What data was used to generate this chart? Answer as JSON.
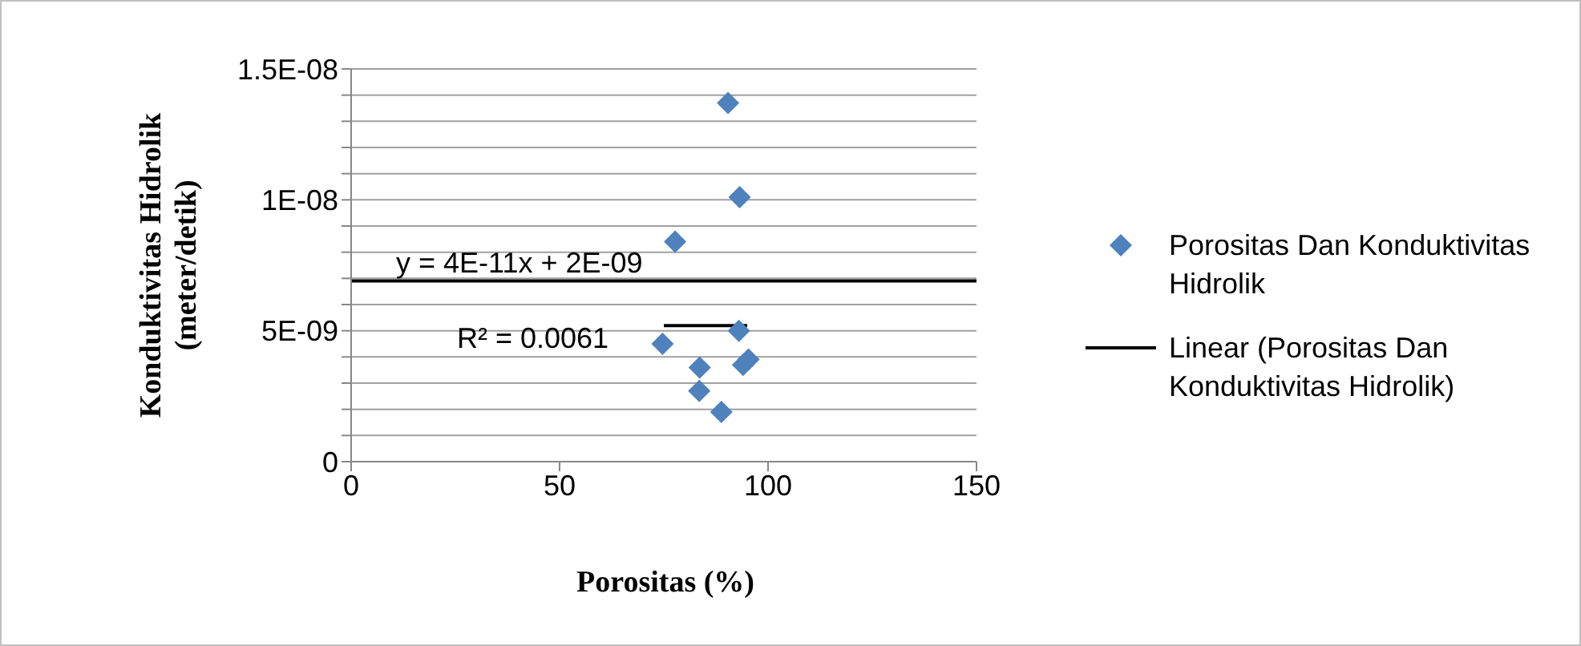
{
  "chart_data": {
    "type": "scatter",
    "xlabel": "Porositas (%)",
    "ylabel": "Konduktivitas Hidrolik (meter/detik)",
    "xlim": [
      0,
      150
    ],
    "xticks": [
      0,
      50,
      100,
      150
    ],
    "ylim": [
      0,
      1.5e-08
    ],
    "yticks": [
      0,
      {
        "value": 1e-09,
        "label": null
      },
      {
        "value": 2e-09,
        "label": null
      },
      {
        "value": 3e-09,
        "label": null
      },
      {
        "value": 4e-09,
        "label": null
      },
      {
        "value": 5e-09,
        "label": "5E-09"
      },
      {
        "value": 6e-09,
        "label": null
      },
      {
        "value": 7e-09,
        "label": null
      },
      {
        "value": 8e-09,
        "label": null
      },
      {
        "value": 9e-09,
        "label": null
      },
      {
        "value": 1e-08,
        "label": "1E-08"
      },
      {
        "value": 1.1e-08,
        "label": null
      },
      {
        "value": 1.2e-08,
        "label": null
      },
      {
        "value": 1.3e-08,
        "label": null
      },
      {
        "value": 1.4e-08,
        "label": null
      },
      {
        "value": 1.5e-08,
        "label": "1.5E-08"
      }
    ],
    "grid": "y",
    "legend": "right",
    "marker": "diamond",
    "series": [
      {
        "name": "Porositas Dan Konduktivitas Hidrolik",
        "color": "#4f81bd",
        "x": [
          90.4,
          93.2,
          77.7,
          93.0,
          74.7,
          95.3,
          94.0,
          83.6,
          83.5,
          88.8
        ],
        "values": [
          1.37e-08,
          1.01e-08,
          8.4e-09,
          5e-09,
          4.5e-09,
          3.9e-09,
          3.7e-09,
          3.6e-09,
          2.7e-09,
          1.9e-09
        ]
      },
      {
        "name": "Linear (Porositas Dan Konduktivitas Hidrolik)",
        "type": "line",
        "color": "#000000",
        "marker": "none",
        "x": [
          0,
          150
        ],
        "values": [
          6.9e-09,
          6.9e-09
        ]
      },
      {
        "type": "line",
        "color": "#000000",
        "marker": "none",
        "x": [
          75,
          95
        ],
        "values": [
          5.2e-09,
          5.2e-09
        ]
      }
    ],
    "annotations": [
      "y = 4E-11x + 2E-09",
      "R² = 0.0061"
    ]
  }
}
